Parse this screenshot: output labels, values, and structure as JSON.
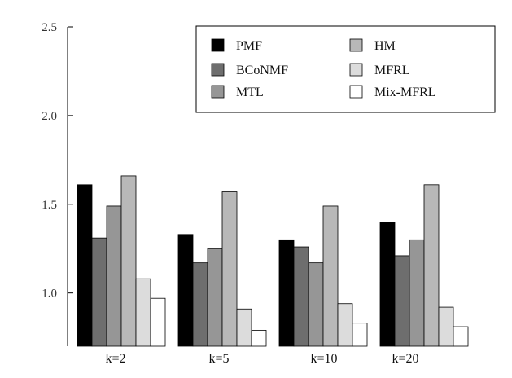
{
  "chart_data": {
    "type": "bar",
    "title": "",
    "xlabel": "",
    "ylabel": "",
    "categories": [
      "k=2",
      "k=5",
      "k=10",
      "k=20"
    ],
    "ylim": [
      0.7,
      2.5
    ],
    "yticks": [
      1.0,
      1.5,
      2.0,
      2.5
    ],
    "ytick_labels": [
      "1.0",
      "1.5",
      "2.0",
      "2.5"
    ],
    "grid": false,
    "legend": "top-right",
    "series": [
      {
        "name": "PMF",
        "color": "#000000",
        "values": [
          1.61,
          1.33,
          1.3,
          1.4
        ]
      },
      {
        "name": "BCoNMF",
        "color": "#6e6e6e",
        "values": [
          1.31,
          1.17,
          1.26,
          1.21
        ]
      },
      {
        "name": "MTL",
        "color": "#969696",
        "values": [
          1.49,
          1.25,
          1.17,
          1.3
        ]
      },
      {
        "name": "HM",
        "color": "#b8b8b8",
        "values": [
          1.66,
          1.57,
          1.49,
          1.61
        ]
      },
      {
        "name": "MFRL",
        "color": "#dcdcdc",
        "values": [
          1.08,
          0.91,
          0.94,
          0.92
        ]
      },
      {
        "name": "Mix-MFRL",
        "color": "#ffffff",
        "values": [
          0.97,
          0.79,
          0.83,
          0.81
        ]
      }
    ]
  }
}
